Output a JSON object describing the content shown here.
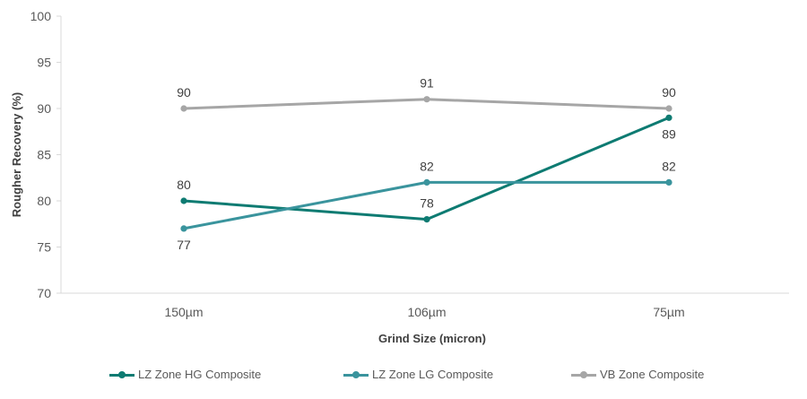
{
  "chart_data": {
    "type": "line",
    "title": "",
    "xlabel": "Grind Size (micron)",
    "ylabel": "Rougher Recovery (%)",
    "categories": [
      "150µm",
      "106µm",
      "75µm"
    ],
    "ylim": [
      70,
      100
    ],
    "yticks": [
      70,
      75,
      80,
      85,
      90,
      95,
      100
    ],
    "grid": false,
    "legend_position": "bottom",
    "series": [
      {
        "name": "LZ Zone HG Composite",
        "color": "#0e7b72",
        "values": [
          80,
          78,
          89
        ],
        "label_side": [
          "above",
          "above",
          "below"
        ]
      },
      {
        "name": "LZ Zone LG Composite",
        "color": "#3a949d",
        "values": [
          77,
          82,
          82
        ],
        "label_side": [
          "below",
          "above",
          "above"
        ]
      },
      {
        "name": "VB Zone Composite",
        "color": "#a6a6a6",
        "values": [
          90,
          91,
          90
        ],
        "label_side": [
          "above",
          "above",
          "above"
        ]
      }
    ]
  }
}
